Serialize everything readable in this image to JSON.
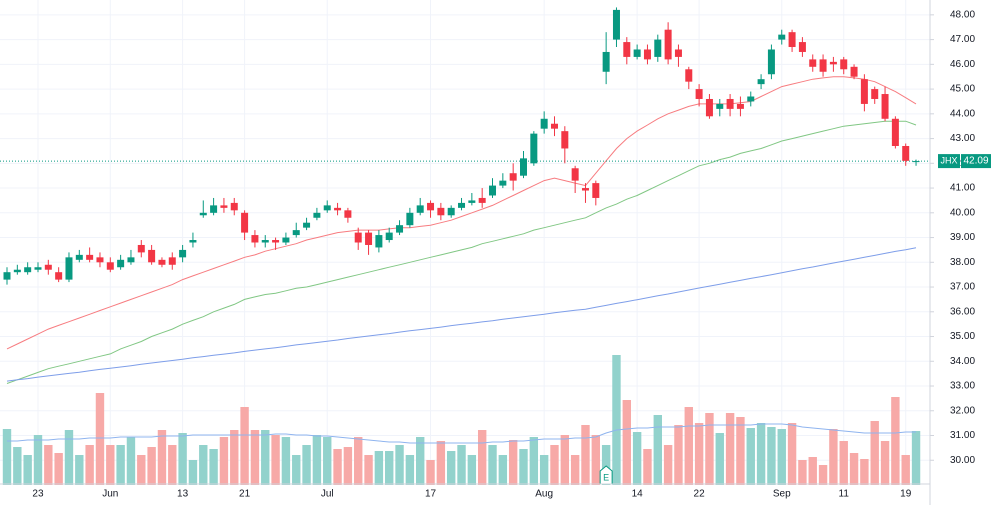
{
  "chart_data": {
    "type": "candlestick",
    "symbol": "JHX",
    "last_price": {
      "value": 42.09,
      "label": "42.09"
    },
    "categories": [
      null,
      null,
      null,
      "23",
      null,
      null,
      null,
      null,
      null,
      null,
      "Jun",
      null,
      null,
      null,
      null,
      null,
      null,
      "13",
      null,
      null,
      null,
      null,
      null,
      "21",
      null,
      null,
      null,
      null,
      null,
      null,
      null,
      "Jul",
      null,
      null,
      null,
      null,
      null,
      null,
      null,
      null,
      null,
      "17",
      null,
      null,
      null,
      null,
      null,
      null,
      null,
      null,
      null,
      null,
      "Aug",
      null,
      null,
      null,
      null,
      null,
      null,
      null,
      null,
      "14",
      null,
      null,
      null,
      null,
      null,
      "22",
      null,
      null,
      null,
      null,
      null,
      null,
      null,
      "Sep",
      null,
      null,
      null,
      null,
      null,
      "11",
      null,
      null,
      null,
      null,
      null,
      "19",
      null
    ],
    "open": [
      37.3,
      37.6,
      37.6,
      37.7,
      37.9,
      37.6,
      37.3,
      38.1,
      38.3,
      38.2,
      38.0,
      37.8,
      38.0,
      38.7,
      38.5,
      38.1,
      38.2,
      38.2,
      38.8,
      39.9,
      40.0,
      40.3,
      40.4,
      40.0,
      39.1,
      38.8,
      38.9,
      38.8,
      39.1,
      39.4,
      39.8,
      40.1,
      40.2,
      40.1,
      39.2,
      39.2,
      38.6,
      38.9,
      39.2,
      39.5,
      40.0,
      40.4,
      40.2,
      39.9,
      40.2,
      40.4,
      40.6,
      40.7,
      41.1,
      41.6,
      41.5,
      42.0,
      43.4,
      43.6,
      43.3,
      41.8,
      41.0,
      41.2,
      45.7,
      47.0,
      46.9,
      46.3,
      46.6,
      46.3,
      47.4,
      46.6,
      45.8,
      45.0,
      44.6,
      44.2,
      44.6,
      44.4,
      44.5,
      45.2,
      45.6,
      47.0,
      47.3,
      46.9,
      46.2,
      46.2,
      46.1,
      46.2,
      45.9,
      45.4,
      45.0,
      44.8,
      43.8,
      42.7,
      42.05
    ],
    "high": [
      37.8,
      37.9,
      38.0,
      38.0,
      38.1,
      37.8,
      38.4,
      38.5,
      38.6,
      38.4,
      38.2,
      38.3,
      38.5,
      38.9,
      38.7,
      38.2,
      38.4,
      38.7,
      39.2,
      40.5,
      40.6,
      40.6,
      40.6,
      40.1,
      39.3,
      39.1,
      39.0,
      39.2,
      39.6,
      39.8,
      40.2,
      40.5,
      40.4,
      40.2,
      39.4,
      39.3,
      39.3,
      39.4,
      39.7,
      40.2,
      40.6,
      40.5,
      40.4,
      40.3,
      40.6,
      40.8,
      41.0,
      41.4,
      41.6,
      42.0,
      42.5,
      43.3,
      44.1,
      43.9,
      43.5,
      41.9,
      41.2,
      41.3,
      47.3,
      48.3,
      47.1,
      46.8,
      46.8,
      47.2,
      47.7,
      46.8,
      45.9,
      45.2,
      44.8,
      44.6,
      44.8,
      44.7,
      44.9,
      45.6,
      46.8,
      47.4,
      47.4,
      47.1,
      46.4,
      46.4,
      46.3,
      46.3,
      46.0,
      45.6,
      45.1,
      45.1,
      43.9,
      42.8,
      42.15
    ],
    "low": [
      37.1,
      37.5,
      37.5,
      37.6,
      37.5,
      37.2,
      37.2,
      38.0,
      38.0,
      37.8,
      37.6,
      37.7,
      37.9,
      38.2,
      37.9,
      37.8,
      37.7,
      38.0,
      38.6,
      39.8,
      39.9,
      40.0,
      39.9,
      38.9,
      38.6,
      38.6,
      38.5,
      38.7,
      39.0,
      39.3,
      39.7,
      40.0,
      39.9,
      39.6,
      38.5,
      38.3,
      38.4,
      38.8,
      39.1,
      39.4,
      39.9,
      39.8,
      39.7,
      39.8,
      40.1,
      40.3,
      40.2,
      40.6,
      41.0,
      40.9,
      41.4,
      41.9,
      43.2,
      43.1,
      42.0,
      40.8,
      40.4,
      40.3,
      45.2,
      46.7,
      46.0,
      46.2,
      46.0,
      46.1,
      46.0,
      45.9,
      45.0,
      44.3,
      43.8,
      43.9,
      43.9,
      43.9,
      44.3,
      45.0,
      45.4,
      46.8,
      46.5,
      46.3,
      45.7,
      45.5,
      45.7,
      45.6,
      45.4,
      44.1,
      44.4,
      43.7,
      42.6,
      41.9,
      41.9
    ],
    "close": [
      37.6,
      37.7,
      37.8,
      37.8,
      37.7,
      37.3,
      38.2,
      38.3,
      38.1,
      38.0,
      37.7,
      38.1,
      38.2,
      38.4,
      38.0,
      37.9,
      37.9,
      38.5,
      38.9,
      40.0,
      40.3,
      40.2,
      40.1,
      39.2,
      38.8,
      38.9,
      38.8,
      39.0,
      39.3,
      39.6,
      40.0,
      40.3,
      40.1,
      39.8,
      38.8,
      38.7,
      39.1,
      39.2,
      39.5,
      40.0,
      40.3,
      40.1,
      39.9,
      40.2,
      40.4,
      40.5,
      40.4,
      41.1,
      41.3,
      41.3,
      42.2,
      43.2,
      43.8,
      43.4,
      42.6,
      41.3,
      40.9,
      40.6,
      46.5,
      48.2,
      46.3,
      46.6,
      46.2,
      47.0,
      46.2,
      46.3,
      45.3,
      44.6,
      43.9,
      44.4,
      44.2,
      44.2,
      44.7,
      45.4,
      46.6,
      47.2,
      46.7,
      46.5,
      45.9,
      45.7,
      46.0,
      45.8,
      45.5,
      44.4,
      44.6,
      43.8,
      42.7,
      42.1,
      42.09
    ],
    "volume": [
      56,
      38,
      30,
      50,
      40,
      32,
      55,
      30,
      40,
      92,
      40,
      40,
      48,
      30,
      38,
      55,
      40,
      52,
      25,
      40,
      36,
      48,
      55,
      78,
      55,
      55,
      50,
      48,
      30,
      40,
      50,
      48,
      36,
      38,
      48,
      30,
      34,
      34,
      40,
      30,
      48,
      25,
      44,
      34,
      40,
      30,
      55,
      40,
      30,
      45,
      36,
      48,
      30,
      40,
      50,
      30,
      60,
      50,
      40,
      130,
      85,
      53,
      36,
      70,
      40,
      60,
      78,
      62,
      72,
      52,
      72,
      68,
      57,
      62,
      58,
      56,
      62,
      25,
      28,
      20,
      56,
      44,
      32,
      26,
      64,
      44,
      88,
      30,
      54
    ],
    "volume_average": {
      "color": "#8fb4ef",
      "values": [
        44,
        44,
        45,
        45,
        45,
        46,
        46,
        46,
        47,
        47,
        47,
        48,
        48,
        48,
        48,
        49,
        49,
        49,
        50,
        50,
        50,
        50,
        50,
        50,
        50,
        50,
        51,
        51,
        50,
        50,
        49,
        49,
        48,
        47,
        46,
        45,
        44,
        43,
        43,
        42,
        42,
        42,
        42,
        42,
        42,
        42,
        42,
        43,
        43,
        44,
        44,
        45,
        46,
        46,
        46,
        47,
        47,
        48,
        52,
        55,
        56,
        57,
        57,
        58,
        58,
        58,
        59,
        59,
        60,
        60,
        60,
        60,
        60,
        61,
        61,
        61,
        60,
        58,
        57,
        56,
        55,
        54,
        53,
        52,
        52,
        52,
        52,
        53,
        53
      ]
    },
    "overlays": [
      {
        "color": "#f77c80",
        "values": [
          34.5,
          34.7,
          34.9,
          35.1,
          35.3,
          35.45,
          35.6,
          35.75,
          35.9,
          36.05,
          36.2,
          36.35,
          36.5,
          36.65,
          36.8,
          36.95,
          37.1,
          37.3,
          37.45,
          37.6,
          37.75,
          37.9,
          38.05,
          38.2,
          38.3,
          38.45,
          38.55,
          38.65,
          38.75,
          38.9,
          39.0,
          39.1,
          39.2,
          39.25,
          39.3,
          39.3,
          39.3,
          39.35,
          39.4,
          39.4,
          39.45,
          39.5,
          39.6,
          39.7,
          39.85,
          40.0,
          40.15,
          40.3,
          40.5,
          40.7,
          40.9,
          41.1,
          41.3,
          41.4,
          41.3,
          41.2,
          41.1,
          41.6,
          42.1,
          42.6,
          43.0,
          43.3,
          43.55,
          43.8,
          44.0,
          44.15,
          44.3,
          44.4,
          44.4,
          44.4,
          44.4,
          44.45,
          44.5,
          44.7,
          44.9,
          45.1,
          45.2,
          45.3,
          45.4,
          45.45,
          45.5,
          45.5,
          45.45,
          45.4,
          45.3,
          45.1,
          44.9,
          44.65,
          44.4
        ]
      },
      {
        "color": "#81c784",
        "values": [
          33.1,
          33.25,
          33.4,
          33.55,
          33.7,
          33.8,
          33.9,
          34.0,
          34.1,
          34.2,
          34.3,
          34.5,
          34.65,
          34.8,
          35.0,
          35.15,
          35.3,
          35.5,
          35.65,
          35.8,
          36.0,
          36.15,
          36.3,
          36.5,
          36.6,
          36.7,
          36.75,
          36.85,
          36.95,
          37.0,
          37.1,
          37.2,
          37.3,
          37.4,
          37.5,
          37.6,
          37.7,
          37.8,
          37.9,
          38.0,
          38.1,
          38.2,
          38.3,
          38.4,
          38.5,
          38.6,
          38.75,
          38.85,
          38.95,
          39.05,
          39.15,
          39.3,
          39.4,
          39.5,
          39.6,
          39.7,
          39.8,
          40.0,
          40.2,
          40.35,
          40.55,
          40.7,
          40.9,
          41.1,
          41.3,
          41.5,
          41.7,
          41.9,
          42.0,
          42.15,
          42.25,
          42.4,
          42.5,
          42.6,
          42.75,
          42.9,
          43.0,
          43.1,
          43.2,
          43.3,
          43.4,
          43.5,
          43.55,
          43.6,
          43.65,
          43.7,
          43.7,
          43.7,
          43.55
        ]
      },
      {
        "color": "#7e9ee9",
        "values": [
          33.2,
          33.25,
          33.3,
          33.36,
          33.41,
          33.46,
          33.51,
          33.56,
          33.62,
          33.67,
          33.72,
          33.77,
          33.82,
          33.88,
          33.93,
          33.98,
          34.03,
          34.08,
          34.14,
          34.19,
          34.24,
          34.29,
          34.34,
          34.4,
          34.45,
          34.5,
          34.55,
          34.6,
          34.66,
          34.71,
          34.76,
          34.81,
          34.86,
          34.92,
          34.97,
          35.02,
          35.07,
          35.12,
          35.18,
          35.23,
          35.28,
          35.33,
          35.38,
          35.44,
          35.49,
          35.54,
          35.59,
          35.64,
          35.7,
          35.75,
          35.8,
          35.85,
          35.9,
          35.96,
          36.01,
          36.06,
          36.1,
          36.18,
          36.26,
          36.34,
          36.41,
          36.49,
          36.57,
          36.65,
          36.72,
          36.8,
          36.88,
          36.96,
          37.04,
          37.11,
          37.19,
          37.27,
          37.35,
          37.42,
          37.5,
          37.58,
          37.66,
          37.74,
          37.81,
          37.89,
          37.97,
          38.05,
          38.12,
          38.2,
          38.28,
          38.36,
          38.44,
          38.51,
          38.59
        ]
      }
    ],
    "events": [
      {
        "label": "E",
        "at": 58
      }
    ],
    "up_color": "#089981",
    "down_color": "#f23645",
    "volume_up_color": "#92d2cc",
    "volume_down_color": "#f7a9a7",
    "ylim": [
      29.0,
      48.6
    ],
    "yticks": [
      {
        "value": 30,
        "label": "30.00"
      },
      {
        "value": 31,
        "label": "31.00"
      },
      {
        "value": 32,
        "label": "32.00"
      },
      {
        "value": 33,
        "label": "33.00"
      },
      {
        "value": 34,
        "label": "34.00"
      },
      {
        "value": 35,
        "label": "35.00"
      },
      {
        "value": 36,
        "label": "36.00"
      },
      {
        "value": 37,
        "label": "37.00"
      },
      {
        "value": 38,
        "label": "38.00"
      },
      {
        "value": 39,
        "label": "39.00"
      },
      {
        "value": 40,
        "label": "40.00"
      },
      {
        "value": 41,
        "label": "41.00"
      },
      {
        "value": 42,
        "label": "42.00"
      },
      {
        "value": 43,
        "label": "43.00"
      },
      {
        "value": 44,
        "label": "44.00"
      },
      {
        "value": 45,
        "label": "45.00"
      },
      {
        "value": 46,
        "label": "46.00"
      },
      {
        "value": 47,
        "label": "47.00"
      },
      {
        "value": 48,
        "label": "48.00"
      }
    ],
    "grid": true
  }
}
